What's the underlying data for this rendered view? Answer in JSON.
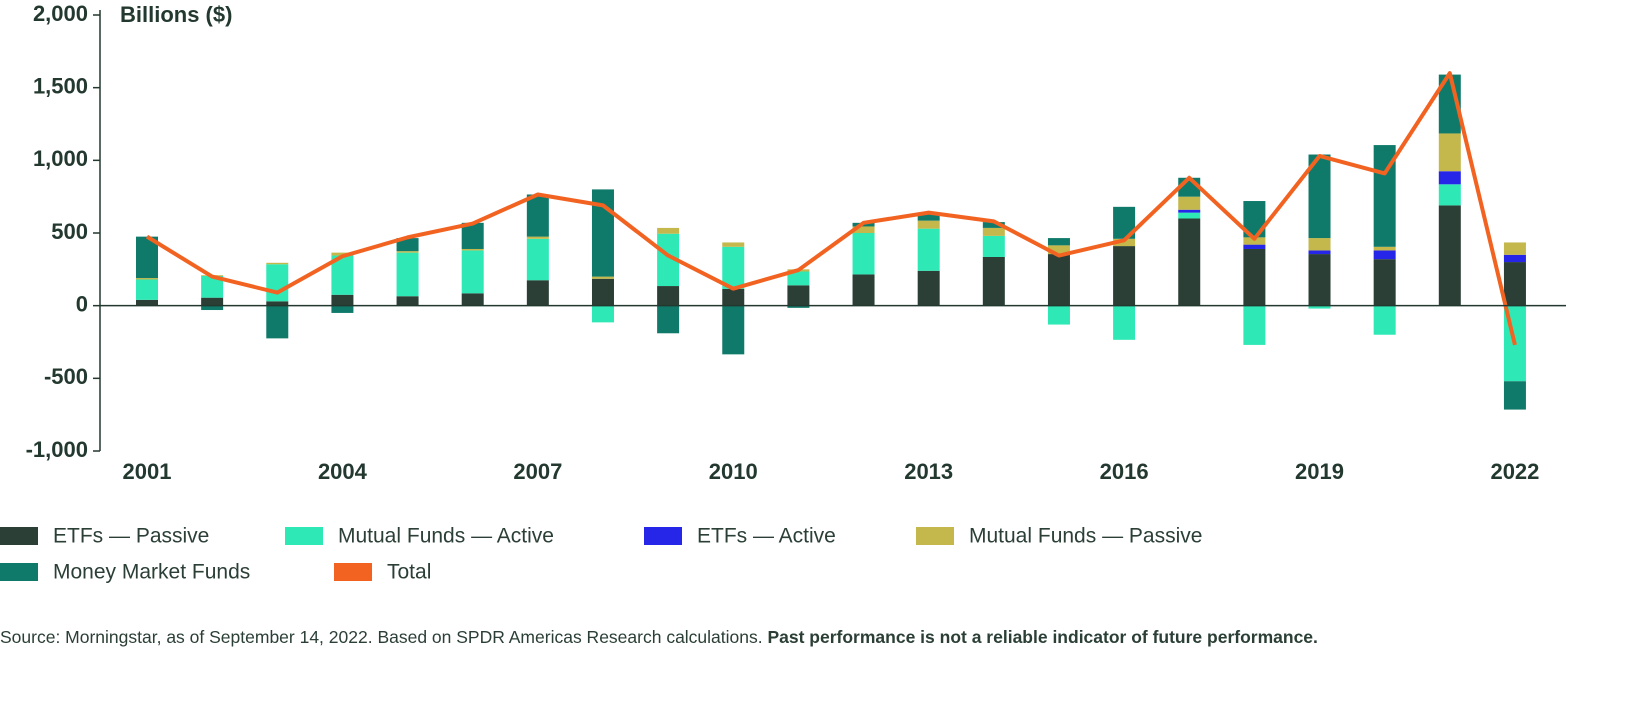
{
  "chart_data": {
    "type": "bar",
    "stacked": true,
    "ylabel": "Billions ($)",
    "categories": [
      "2001",
      null,
      null,
      "2004",
      null,
      null,
      "2007",
      null,
      null,
      "2010",
      null,
      null,
      "2013",
      null,
      null,
      "2016",
      null,
      null,
      "2019",
      null,
      null,
      "2022"
    ],
    "ylim": [
      -1000,
      2000
    ],
    "yticks": [
      {
        "value": 2000,
        "label": "2,000"
      },
      {
        "value": 1500,
        "label": "1,500"
      },
      {
        "value": 1000,
        "label": "1,000"
      },
      500,
      0,
      -500,
      {
        "value": -1000,
        "label": "-1,000"
      }
    ],
    "grid": false,
    "legend": "bottom",
    "series": [
      {
        "name": "ETFs — Passive",
        "color": "#2b3f36",
        "values": [
          40,
          55,
          30,
          75,
          65,
          85,
          175,
          185,
          135,
          115,
          140,
          215,
          240,
          335,
          355,
          410,
          600,
          390,
          355,
          320,
          690,
          300
        ]
      },
      {
        "name": "Mutual Funds — Active",
        "color": "#2ee8b6",
        "values": [
          140,
          150,
          255,
          270,
          300,
          295,
          285,
          -115,
          360,
          290,
          95,
          285,
          290,
          145,
          -130,
          -235,
          40,
          -270,
          -20,
          -200,
          145,
          -520
        ]
      },
      {
        "name": "ETFs — Active",
        "color": "#2626e8",
        "values": [
          0,
          0,
          0,
          0,
          0,
          0,
          0,
          0,
          0,
          0,
          0,
          0,
          0,
          0,
          0,
          0,
          20,
          30,
          25,
          60,
          90,
          50
        ]
      },
      {
        "name": "Mutual Funds — Passive",
        "color": "#c4b84c",
        "values": [
          10,
          5,
          10,
          20,
          10,
          10,
          15,
          15,
          40,
          30,
          15,
          45,
          55,
          55,
          60,
          50,
          90,
          50,
          85,
          25,
          260,
          85
        ]
      },
      {
        "name": "Money Market Funds",
        "color": "#0f7a6a",
        "values": [
          285,
          -30,
          -225,
          -50,
          90,
          180,
          290,
          600,
          -190,
          -335,
          -15,
          25,
          45,
          40,
          50,
          220,
          130,
          250,
          575,
          700,
          405,
          -195
        ]
      },
      {
        "name": "Total",
        "color": "#f26322",
        "type": "line",
        "values": [
          475,
          200,
          90,
          340,
          470,
          565,
          765,
          690,
          345,
          117,
          245,
          570,
          640,
          580,
          345,
          450,
          880,
          460,
          1030,
          910,
          1600,
          -270
        ]
      }
    ]
  },
  "footnote": {
    "text": "Source: Morningstar, as of September 14, 2022. Based on SPDR Americas Research calculations. ",
    "bold": "Past performance is not a reliable indicator of future performance."
  }
}
